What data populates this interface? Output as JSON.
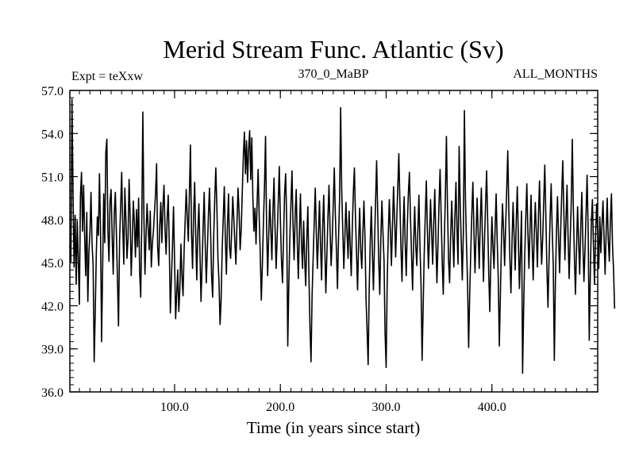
{
  "chart_data": {
    "type": "line",
    "title": "Merid Stream Func. Atlantic (Sv)",
    "subtitle_left": "Expt = teXxw",
    "subtitle_center": "370_0_MaBP",
    "subtitle_right": "ALL_MONTHS",
    "xlabel": "Time (in years since start)",
    "ylabel": "",
    "xlim": [
      1,
      500
    ],
    "ylim": [
      36.0,
      57.0
    ],
    "x_ticks": [
      "100.0",
      "200.0",
      "300.0",
      "400.0"
    ],
    "y_ticks": [
      "36.0",
      "39.0",
      "42.0",
      "45.0",
      "48.0",
      "51.0",
      "54.0",
      "57.0"
    ],
    "grid": false,
    "series": [
      {
        "x_start": 1,
        "x_step": 1,
        "values": [
          46.2,
          45.1,
          56.4,
          49.8,
          44.7,
          48.3,
          43.5,
          47.9,
          45.2,
          42.1,
          49.6,
          51.3,
          47.2,
          50.4,
          46.8,
          44.1,
          48.5,
          42.3,
          45.7,
          47.1,
          49.9,
          46.3,
          44.8,
          38.1,
          41.5,
          45.6,
          48.2,
          46.9,
          51.2,
          47.3,
          39.5,
          44.6,
          49.8,
          46.4,
          52.7,
          53.6,
          47.2,
          45.1,
          49.3,
          50.1,
          46.8,
          44.2,
          48.4,
          49.9,
          47.1,
          43.8,
          40.6,
          46.5,
          48.9,
          51.3,
          47.6,
          44.9,
          50.2,
          48.1,
          45.3,
          46.7,
          50.8,
          48.2,
          44.1,
          46.5,
          49.3,
          47.8,
          45.4,
          48.7,
          46.1,
          49.5,
          44.3,
          42.6,
          47.9,
          55.5,
          48.3,
          44.2,
          46.8,
          49.1,
          47.5,
          45.9,
          48.6,
          44.7,
          46.3,
          47.2,
          48.5,
          49.8,
          51.9,
          46.1,
          44.8,
          47.6,
          49.2,
          46.4,
          48.9,
          50.4,
          47.3,
          45.6,
          48.1,
          49.7,
          46.2,
          41.5,
          43.8,
          46.1,
          48.9,
          45.2,
          41.1,
          42.8,
          44.5,
          41.6,
          43.2,
          46.3,
          44.1,
          42.7,
          45.8,
          47.9,
          50.1,
          48.2,
          46.5,
          49.8,
          53.2,
          47.1,
          44.6,
          48.4,
          50.6,
          46.9,
          43.8,
          47.2,
          49.1,
          45.7,
          42.3,
          44.8,
          47.5,
          49.9,
          46.2,
          43.6,
          45.9,
          48.3,
          50.2,
          47.4,
          44.1,
          42.6,
          46.8,
          49.5,
          51.6,
          48.9,
          45.3,
          43.7,
          40.7,
          42.4,
          45.9,
          48.1,
          50.3,
          46.7,
          44.2,
          47.6,
          49.8,
          46.1,
          45.3,
          47.2,
          49.6,
          48.1,
          46.4,
          44.9,
          47.8,
          50.2,
          48.5,
          45.9,
          47.3,
          49.9,
          52.4,
          54.1,
          51.2,
          53.5,
          50.6,
          52.9,
          54.2,
          50.8,
          53.7,
          49.6,
          47.2,
          48.8,
          46.3,
          49.1,
          51.5,
          48.2,
          45.6,
          42.4,
          44.9,
          47.8,
          50.3,
          53.8,
          47.5,
          44.1,
          46.9,
          49.4,
          47.3,
          45.2,
          48.6,
          50.9,
          47.4,
          44.6,
          46.8,
          49.2,
          51.7,
          48.1,
          45.3,
          43.6,
          46.7,
          49.8,
          51.2,
          47.9,
          39.2,
          43.5,
          46.8,
          49.1,
          51.4,
          47.6,
          45.2,
          48.3,
          50.1,
          46.4,
          43.9,
          47.1,
          49.8,
          46.3,
          44.6,
          47.9,
          45.2,
          43.4,
          46.7,
          48.9,
          44.2,
          40.5,
          38.1,
          42.7,
          45.3,
          47.8,
          50.2,
          47.1,
          44.6,
          46.9,
          49.3,
          46.2,
          43.8,
          47.5,
          49.7,
          46.1,
          42.9,
          45.6,
          48.2,
          50.4,
          47.3,
          44.8,
          46.5,
          49.1,
          51.6,
          48.3,
          45.9,
          43.2,
          46.7,
          49.4,
          55.8,
          50.1,
          47.3,
          44.6,
          46.8,
          49.2,
          47.1,
          45.3,
          48.6,
          46.2,
          44.1,
          47.4,
          49.9,
          51.6,
          48.2,
          45.7,
          43.1,
          46.4,
          48.8,
          45.9,
          44.6,
          47.1,
          49.3,
          46.8,
          42.5,
          40.3,
          37.9,
          43.2,
          46.5,
          48.9,
          45.7,
          43.1,
          46.3,
          49.2,
          52.1,
          48.6,
          45.1,
          42.8,
          46.7,
          49.3,
          47.1,
          45.2,
          40.1,
          37.7,
          43.6,
          46.9,
          49.4,
          47.2,
          44.8,
          47.6,
          50.3,
          48.1,
          45.4,
          47.9,
          50.2,
          52.6,
          49.3,
          46.1,
          43.7,
          47.2,
          49.6,
          46.4,
          44.1,
          47.5,
          49.8,
          51.3,
          48.2,
          45.6,
          43.1,
          46.4,
          48.9,
          46.2,
          44.8,
          47.3,
          49.7,
          46.1,
          43.5,
          38.2,
          41.9,
          45.6,
          48.3,
          50.7,
          47.2,
          44.6,
          46.9,
          49.4,
          47.1,
          44.9,
          47.8,
          50.1,
          46.7,
          43.6,
          46.2,
          49.1,
          51.5,
          48.3,
          45.1,
          42.8,
          46.5,
          49.7,
          53.8,
          48.9,
          45.2,
          43.6,
          46.8,
          49.3,
          47.1,
          44.7,
          48.2,
          50.6,
          47.3,
          44.9,
          53.1,
          49.2,
          46.5,
          43.8,
          47.1,
          55.6,
          49.4,
          46.2,
          43.5,
          39.1,
          42.8,
          45.7,
          48.4,
          50.6,
          47.2,
          44.3,
          46.9,
          49.5,
          47.1,
          44.6,
          47.8,
          50.2,
          46.9,
          43.7,
          46.5,
          49.1,
          51.4,
          47.9,
          44.2,
          41.6,
          45.3,
          48.2,
          46.1,
          44.6,
          47.3,
          49.8,
          46.5,
          43.9,
          39.2,
          42.7,
          46.4,
          49.1,
          47.3,
          44.8,
          47.6,
          50.1,
          52.8,
          48.6,
          45.2,
          42.9,
          46.4,
          49.2,
          46.8,
          44.5,
          47.9,
          50.3,
          46.7,
          43.2,
          45.8,
          48.6,
          37.3,
          41.8,
          45.4,
          48.1,
          50.5,
          47.2,
          44.6,
          47.3,
          49.7,
          46.4,
          43.8,
          46.9,
          49.2,
          47.1,
          44.7,
          48.3,
          50.7,
          47.4,
          44.9,
          46.7,
          49.3,
          51.8,
          48.2,
          44.6,
          41.9,
          45.2,
          48.1,
          50.5,
          47.3,
          44.8,
          38.2,
          43.6,
          47.1,
          49.6,
          46.8,
          44.3,
          47.2,
          49.8,
          52.1,
          48.6,
          45.2,
          47.9,
          50.4,
          46.8,
          43.9,
          46.5,
          49.2,
          53.6,
          48.7,
          45.3,
          42.8,
          46.1,
          48.9,
          46.4,
          44.2,
          47.5,
          49.9,
          46.3,
          43.7,
          45.9,
          48.4,
          51.1,
          47.2,
          39.6,
          44.1,
          47.8,
          49.4,
          46.2,
          43.5,
          46.8,
          49.1,
          47.3,
          44.6,
          48.2,
          45.7,
          47.6,
          49.3,
          46.8,
          44.2,
          47.1,
          49.5,
          46.6,
          45.1,
          47.9,
          49.8,
          46.2,
          44.5,
          41.8
        ]
      }
    ]
  }
}
